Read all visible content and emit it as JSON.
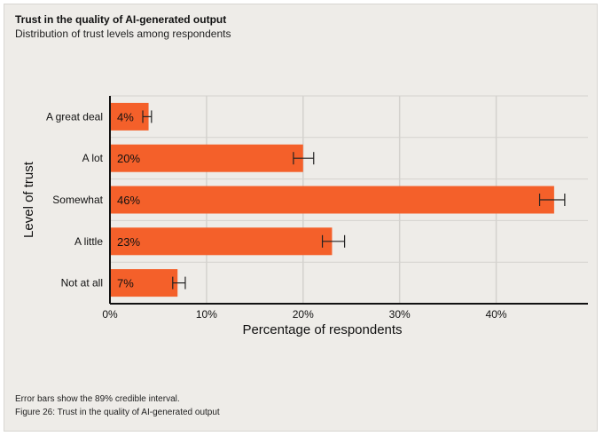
{
  "title": "Trust in the quality of AI-generated output",
  "subtitle": "Distribution of trust levels among respondents",
  "footnote": "Error bars show the 89% credible interval.",
  "caption": "Figure 26: Trust in the quality of AI-generated output",
  "colors": {
    "bar": "#f4602a",
    "grid": "#d4d2ce",
    "axis": "#111111",
    "background": "#eeece8"
  },
  "chart_data": {
    "type": "bar",
    "orientation": "horizontal",
    "categories": [
      "A great deal",
      "A lot",
      "Somewhat",
      "A little",
      "Not at all"
    ],
    "values": [
      4,
      20,
      46,
      23,
      7
    ],
    "value_labels": [
      "4%",
      "20%",
      "46%",
      "23%",
      "7%"
    ],
    "error_low": [
      3.4,
      19.0,
      44.5,
      22.0,
      6.5
    ],
    "error_high": [
      4.3,
      21.1,
      47.1,
      24.3,
      7.8
    ],
    "xlabel": "Percentage of respondents",
    "ylabel": "Level of trust",
    "xlim": [
      0,
      49.5
    ],
    "xticks": [
      0,
      10,
      20,
      30,
      40
    ],
    "xtick_labels": [
      "0%",
      "10%",
      "20%",
      "30%",
      "40%"
    ],
    "grid": "vertical"
  }
}
